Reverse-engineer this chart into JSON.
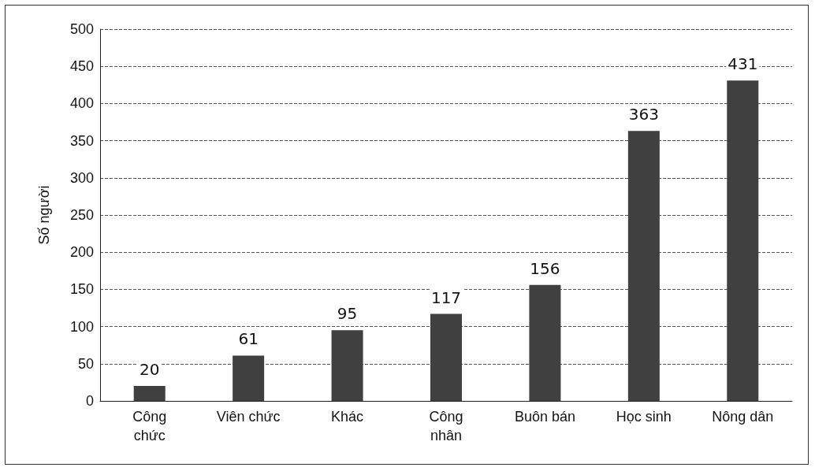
{
  "chart_data": {
    "type": "bar",
    "ylabel": "Số người",
    "categories": [
      "Công\nchức",
      "Viên chức",
      "Khác",
      "Công\nnhân",
      "Buôn bán",
      "Học sinh",
      "Nông dân"
    ],
    "values": [
      20,
      61,
      95,
      117,
      156,
      363,
      431
    ],
    "color": "#404040",
    "ylim": [
      0,
      500
    ],
    "yticks": [
      0,
      50,
      100,
      150,
      200,
      250,
      300,
      350,
      400,
      450,
      500
    ],
    "grid": "y",
    "data_labels": true,
    "line_style": "dashed"
  }
}
